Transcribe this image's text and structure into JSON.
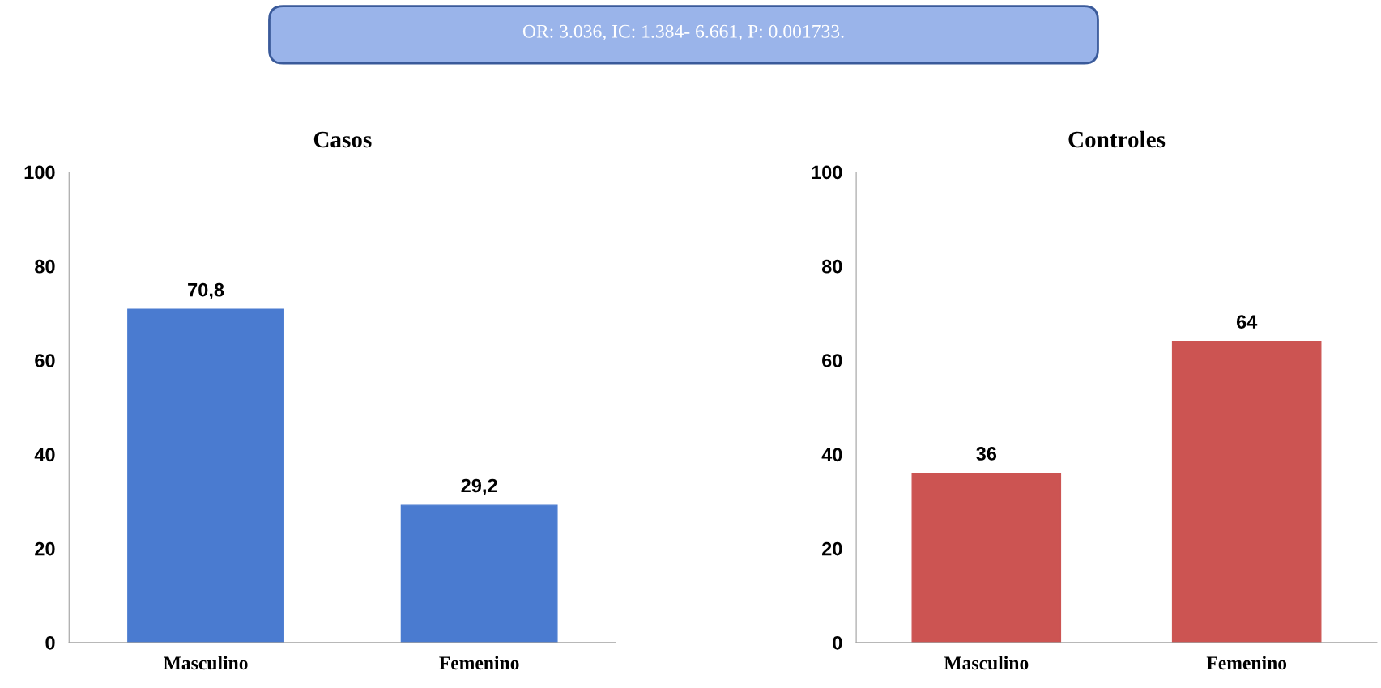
{
  "chart_data": [
    {
      "type": "bar",
      "title": "Casos",
      "categories": [
        "Masculino",
        "Femenino"
      ],
      "values": [
        70.8,
        29.2
      ],
      "color": "#4a7bd0",
      "value_labels": [
        "70,8",
        "29,2"
      ],
      "ylim": [
        0,
        100
      ],
      "yticks": [
        0,
        20,
        40,
        60,
        80,
        100
      ],
      "grid": false,
      "annotations": [
        "OR: 3.036, IC: 1.384- 6.661, P: 0.001733."
      ]
    },
    {
      "type": "bar",
      "title": "Controles",
      "categories": [
        "Masculino",
        "Femenino"
      ],
      "values": [
        36,
        64
      ],
      "color": "#cc5452",
      "value_labels": [
        "36",
        "64"
      ],
      "ylim": [
        0,
        100
      ],
      "yticks": [
        0,
        20,
        40,
        60,
        80,
        100
      ],
      "grid": false
    }
  ]
}
